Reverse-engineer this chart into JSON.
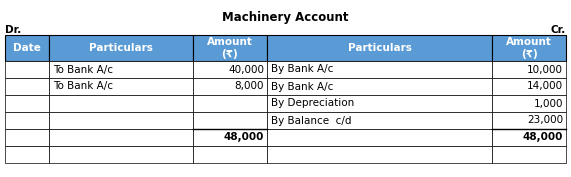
{
  "title": "Machinery Account",
  "dr_label": "Dr.",
  "cr_label": "Cr.",
  "header_color": "#5B9BD5",
  "header_text_color": "#FFFFFF",
  "border_color": "#000000",
  "text_color": "#000000",
  "col_headers": [
    "Date",
    "Particulars",
    "Amount\n(₹)",
    "Particulars",
    "Amount\n(₹)"
  ],
  "rows": [
    [
      "",
      "To Bank A/c",
      "40,000",
      "By Bank A/c",
      "10,000"
    ],
    [
      "",
      "To Bank A/c",
      "8,000",
      "By Bank A/c",
      "14,000"
    ],
    [
      "",
      "",
      "",
      "By Depreciation",
      "1,000"
    ],
    [
      "",
      "",
      "",
      "By Balance  c/d",
      "23,000"
    ],
    [
      "",
      "",
      "48,000",
      "",
      "48,000"
    ],
    [
      "",
      "",
      "",
      "",
      ""
    ]
  ],
  "total_row_index": 4,
  "figsize": [
    5.71,
    1.77
  ],
  "dpi": 100,
  "title_fontsize": 8.5,
  "header_fontsize": 7.5,
  "cell_fontsize": 7.5,
  "dr_cr_fontsize": 7.5
}
